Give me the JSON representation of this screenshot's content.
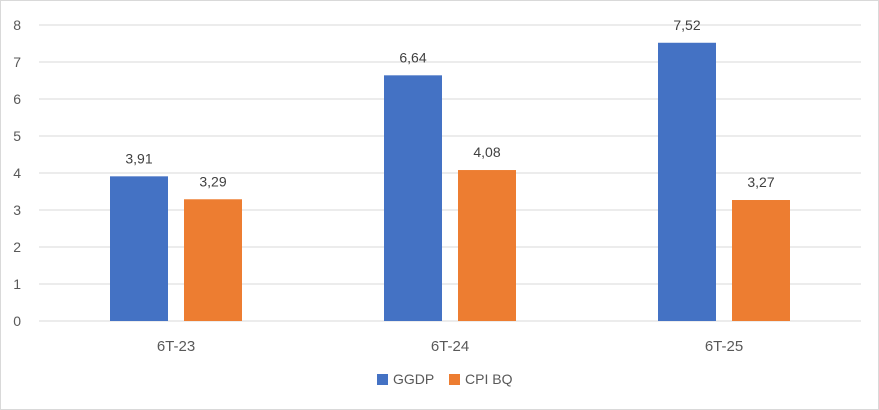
{
  "chart_data": {
    "type": "bar",
    "categories": [
      "6T-23",
      "6T-24",
      "6T-25"
    ],
    "series": [
      {
        "name": "GGDP",
        "values": [
          3.91,
          6.64,
          7.52
        ],
        "color": "#4472C4"
      },
      {
        "name": "CPI BQ",
        "values": [
          3.29,
          4.08,
          3.27
        ],
        "color": "#ED7D31"
      }
    ],
    "data_labels": [
      [
        "3,91",
        "6,64",
        "7,52"
      ],
      [
        "3,29",
        "4,08",
        "3,27"
      ]
    ],
    "y_ticks": [
      "0",
      "1",
      "2",
      "3",
      "4",
      "5",
      "6",
      "7",
      "8"
    ],
    "ylim": [
      0,
      8
    ],
    "grid": true,
    "legend_position": "bottom",
    "gridline_color": "#d9d9d9"
  }
}
